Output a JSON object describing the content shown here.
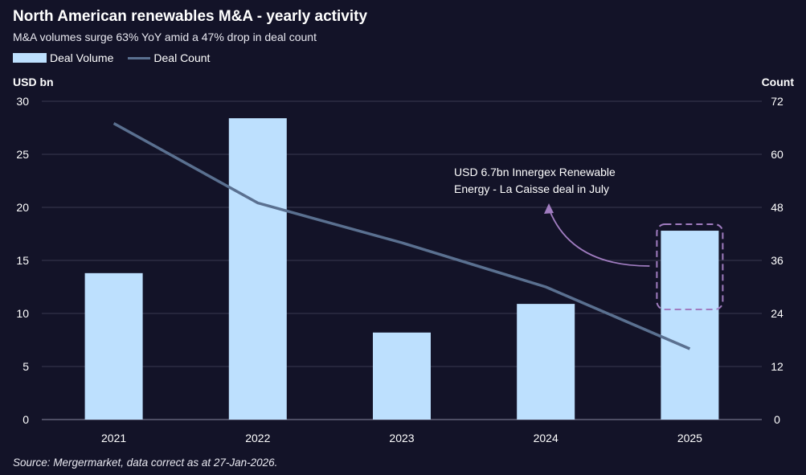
{
  "title": "North American renewables M&A - yearly activity",
  "subtitle": "M&A volumes surge 63% YoY amid a 47% drop in deal count",
  "source": "Source: Mergermarket, data correct as at 27-Jan-2026.",
  "colors": {
    "background": "#131328",
    "bar": "#bde0fe",
    "line": "#5a7090",
    "annotation": "#a07cc0",
    "grid": "#3a3a50"
  },
  "chart_data": {
    "type": "bar+line",
    "categories": [
      "2021",
      "2022",
      "2023",
      "2024",
      "2025"
    ],
    "series": [
      {
        "name": "Deal Volume",
        "type": "bar",
        "axis": "left",
        "values": [
          13.8,
          28.4,
          8.2,
          10.9,
          17.8
        ]
      },
      {
        "name": "Deal Count",
        "type": "line",
        "axis": "right",
        "values": [
          67,
          49,
          40,
          30,
          16
        ]
      }
    ],
    "ylabel_left": "USD bn",
    "ylabel_right": "Count",
    "ylim_left": [
      0,
      30
    ],
    "yticks_left": [
      "0",
      "5",
      "10",
      "15",
      "20",
      "25",
      "30"
    ],
    "ylim_right": [
      0,
      72
    ],
    "yticks_right": [
      "0",
      "12",
      "24",
      "36",
      "48",
      "60",
      "72"
    ],
    "grid": true,
    "legend": "top-left",
    "annotation": {
      "category": "2025",
      "lines": [
        "USD 6.7bn Innergex Renewable",
        "Energy - La Caisse deal in July"
      ]
    }
  }
}
